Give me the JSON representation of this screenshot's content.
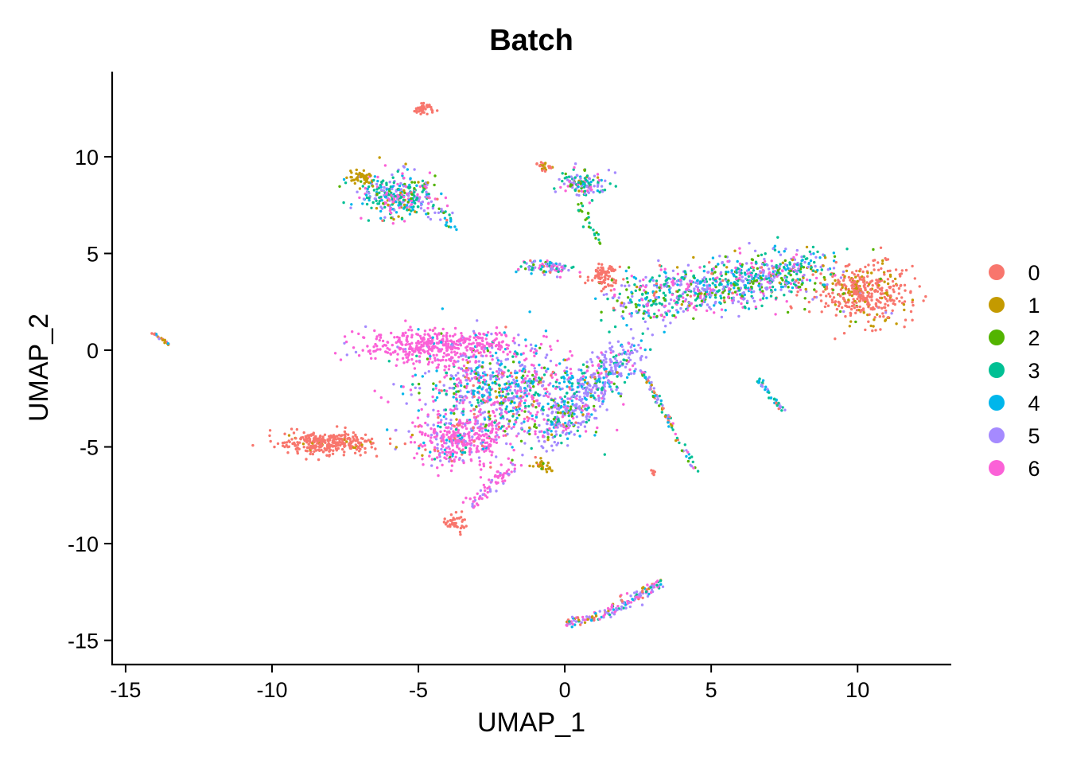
{
  "chart_data": {
    "type": "scatter",
    "title": "Batch",
    "xlabel": "UMAP_1",
    "ylabel": "UMAP_2",
    "xlim": [
      -15.46,
      13.2
    ],
    "ylim": [
      -16.25,
      14.4
    ],
    "xticks": [
      -15,
      -10,
      -5,
      0,
      5,
      10
    ],
    "yticks": [
      -15,
      -10,
      -5,
      0,
      5,
      10
    ],
    "grid": false,
    "legend_position": "right",
    "legend": [
      "0",
      "1",
      "2",
      "3",
      "4",
      "5",
      "6"
    ],
    "colors": [
      "#F8766D",
      "#C49A00",
      "#53B400",
      "#00C094",
      "#00B6EB",
      "#A58AFF",
      "#FB61D7"
    ],
    "note_points": "approximate point clouds per region; batch weights for groups 0-6",
    "regions": [
      {
        "shape": "blob",
        "center": [
          -4.8,
          12.5
        ],
        "spread": [
          0.2,
          0.2
        ],
        "n": 40,
        "batches": [
          1,
          0,
          0,
          0,
          0,
          0,
          0
        ]
      },
      {
        "shape": "blob",
        "center": [
          -5.7,
          8.0
        ],
        "spread": [
          0.8,
          0.7
        ],
        "n": 320,
        "batches": [
          0.02,
          0.05,
          0.1,
          0.25,
          0.15,
          0.23,
          0.2
        ]
      },
      {
        "shape": "blob",
        "center": [
          -7.0,
          8.9
        ],
        "spread": [
          0.35,
          0.25
        ],
        "n": 50,
        "batches": [
          0,
          0.9,
          0.05,
          0.05,
          0,
          0,
          0
        ]
      },
      {
        "shape": "line",
        "from": [
          -4.8,
          8.2
        ],
        "to": [
          -3.8,
          6.3
        ],
        "width": 0.2,
        "n": 40,
        "batches": [
          0.1,
          0,
          0.1,
          0.3,
          0.2,
          0.3,
          0
        ]
      },
      {
        "shape": "blob",
        "center": [
          0.6,
          8.6
        ],
        "spread": [
          0.45,
          0.45
        ],
        "n": 130,
        "batches": [
          0,
          0.05,
          0.1,
          0.3,
          0.1,
          0.25,
          0.2
        ]
      },
      {
        "shape": "blob",
        "center": [
          -0.7,
          9.5
        ],
        "spread": [
          0.2,
          0.15
        ],
        "n": 25,
        "batches": [
          0.6,
          0.4,
          0,
          0,
          0,
          0,
          0
        ]
      },
      {
        "shape": "line",
        "from": [
          0.5,
          7.5
        ],
        "to": [
          1.2,
          5.5
        ],
        "width": 0.15,
        "n": 25,
        "batches": [
          0,
          0,
          0.5,
          0.5,
          0,
          0,
          0
        ]
      },
      {
        "shape": "blob",
        "center": [
          -0.6,
          4.3
        ],
        "spread": [
          0.6,
          0.25
        ],
        "n": 90,
        "batches": [
          0.1,
          0,
          0.1,
          0.2,
          0.1,
          0.3,
          0.2
        ]
      },
      {
        "shape": "blob",
        "center": [
          1.3,
          3.9
        ],
        "spread": [
          0.35,
          0.4
        ],
        "n": 90,
        "batches": [
          1,
          0,
          0,
          0,
          0,
          0,
          0
        ]
      },
      {
        "shape": "line",
        "from": [
          2.2,
          2.5
        ],
        "to": [
          8.5,
          4.3
        ],
        "width": 1.1,
        "n": 900,
        "batches": [
          0.02,
          0.02,
          0.12,
          0.22,
          0.17,
          0.27,
          0.18
        ]
      },
      {
        "shape": "blob",
        "center": [
          10.2,
          2.9
        ],
        "spread": [
          1.0,
          0.95
        ],
        "n": 420,
        "batches": [
          0.8,
          0.15,
          0.02,
          0,
          0,
          0.03,
          0
        ]
      },
      {
        "shape": "blob",
        "center": [
          -4.3,
          0.2
        ],
        "spread": [
          1.6,
          0.55
        ],
        "n": 450,
        "batches": [
          0,
          0,
          0,
          0,
          0.02,
          0.04,
          0.94
        ]
      },
      {
        "shape": "blob",
        "center": [
          -2.0,
          -2.2
        ],
        "spread": [
          1.8,
          1.6
        ],
        "n": 900,
        "batches": [
          0.05,
          0.03,
          0.07,
          0.13,
          0.17,
          0.25,
          0.3
        ]
      },
      {
        "shape": "line",
        "from": [
          -0.5,
          -4.5
        ],
        "to": [
          2.2,
          0.2
        ],
        "width": 0.7,
        "n": 450,
        "batches": [
          0,
          0.02,
          0.05,
          0.1,
          0.13,
          0.6,
          0.1
        ]
      },
      {
        "shape": "blob",
        "center": [
          -3.6,
          -4.7
        ],
        "spread": [
          0.9,
          0.8
        ],
        "n": 350,
        "batches": [
          0.08,
          0,
          0,
          0.05,
          0.07,
          0.1,
          0.7
        ]
      },
      {
        "shape": "line",
        "from": [
          -3.2,
          -8.0
        ],
        "to": [
          -1.8,
          -6.0
        ],
        "width": 0.25,
        "n": 70,
        "batches": [
          0,
          0,
          0,
          0,
          0,
          0.3,
          0.7
        ]
      },
      {
        "shape": "blob",
        "center": [
          -8.0,
          -4.8
        ],
        "spread": [
          1.0,
          0.35
        ],
        "n": 330,
        "batches": [
          0.95,
          0.05,
          0,
          0,
          0,
          0,
          0
        ]
      },
      {
        "shape": "blob",
        "center": [
          -3.7,
          -8.9
        ],
        "spread": [
          0.3,
          0.3
        ],
        "n": 40,
        "batches": [
          1,
          0,
          0,
          0,
          0,
          0,
          0
        ]
      },
      {
        "shape": "blob",
        "center": [
          -0.8,
          -6.0
        ],
        "spread": [
          0.3,
          0.2
        ],
        "n": 30,
        "batches": [
          0.1,
          0.8,
          0.1,
          0,
          0,
          0,
          0
        ]
      },
      {
        "shape": "arc",
        "from": [
          0,
          -14.1
        ],
        "to": [
          3.4,
          -12.0
        ],
        "width": 0.2,
        "n": 170,
        "batches": [
          0.1,
          0.1,
          0,
          0.1,
          0.1,
          0.3,
          0.3
        ]
      },
      {
        "shape": "line",
        "from": [
          2.6,
          -1.0
        ],
        "to": [
          4.5,
          -6.3
        ],
        "width": 0.12,
        "n": 90,
        "batches": [
          0.1,
          0.1,
          0.05,
          0.2,
          0.15,
          0.3,
          0.1
        ]
      },
      {
        "shape": "line",
        "from": [
          6.6,
          -1.5
        ],
        "to": [
          7.5,
          -3.2
        ],
        "width": 0.08,
        "n": 40,
        "batches": [
          0.1,
          0,
          0,
          0.3,
          0.3,
          0.3,
          0
        ]
      },
      {
        "shape": "line",
        "from": [
          -14.2,
          1.0
        ],
        "to": [
          -13.5,
          0.3
        ],
        "width": 0.05,
        "n": 25,
        "batches": [
          0.2,
          0.4,
          0,
          0,
          0.2,
          0.2,
          0
        ]
      },
      {
        "shape": "blob",
        "center": [
          3.0,
          -6.3
        ],
        "spread": [
          0.08,
          0.08
        ],
        "n": 6,
        "batches": [
          1,
          0,
          0,
          0,
          0,
          0,
          0
        ]
      }
    ]
  }
}
